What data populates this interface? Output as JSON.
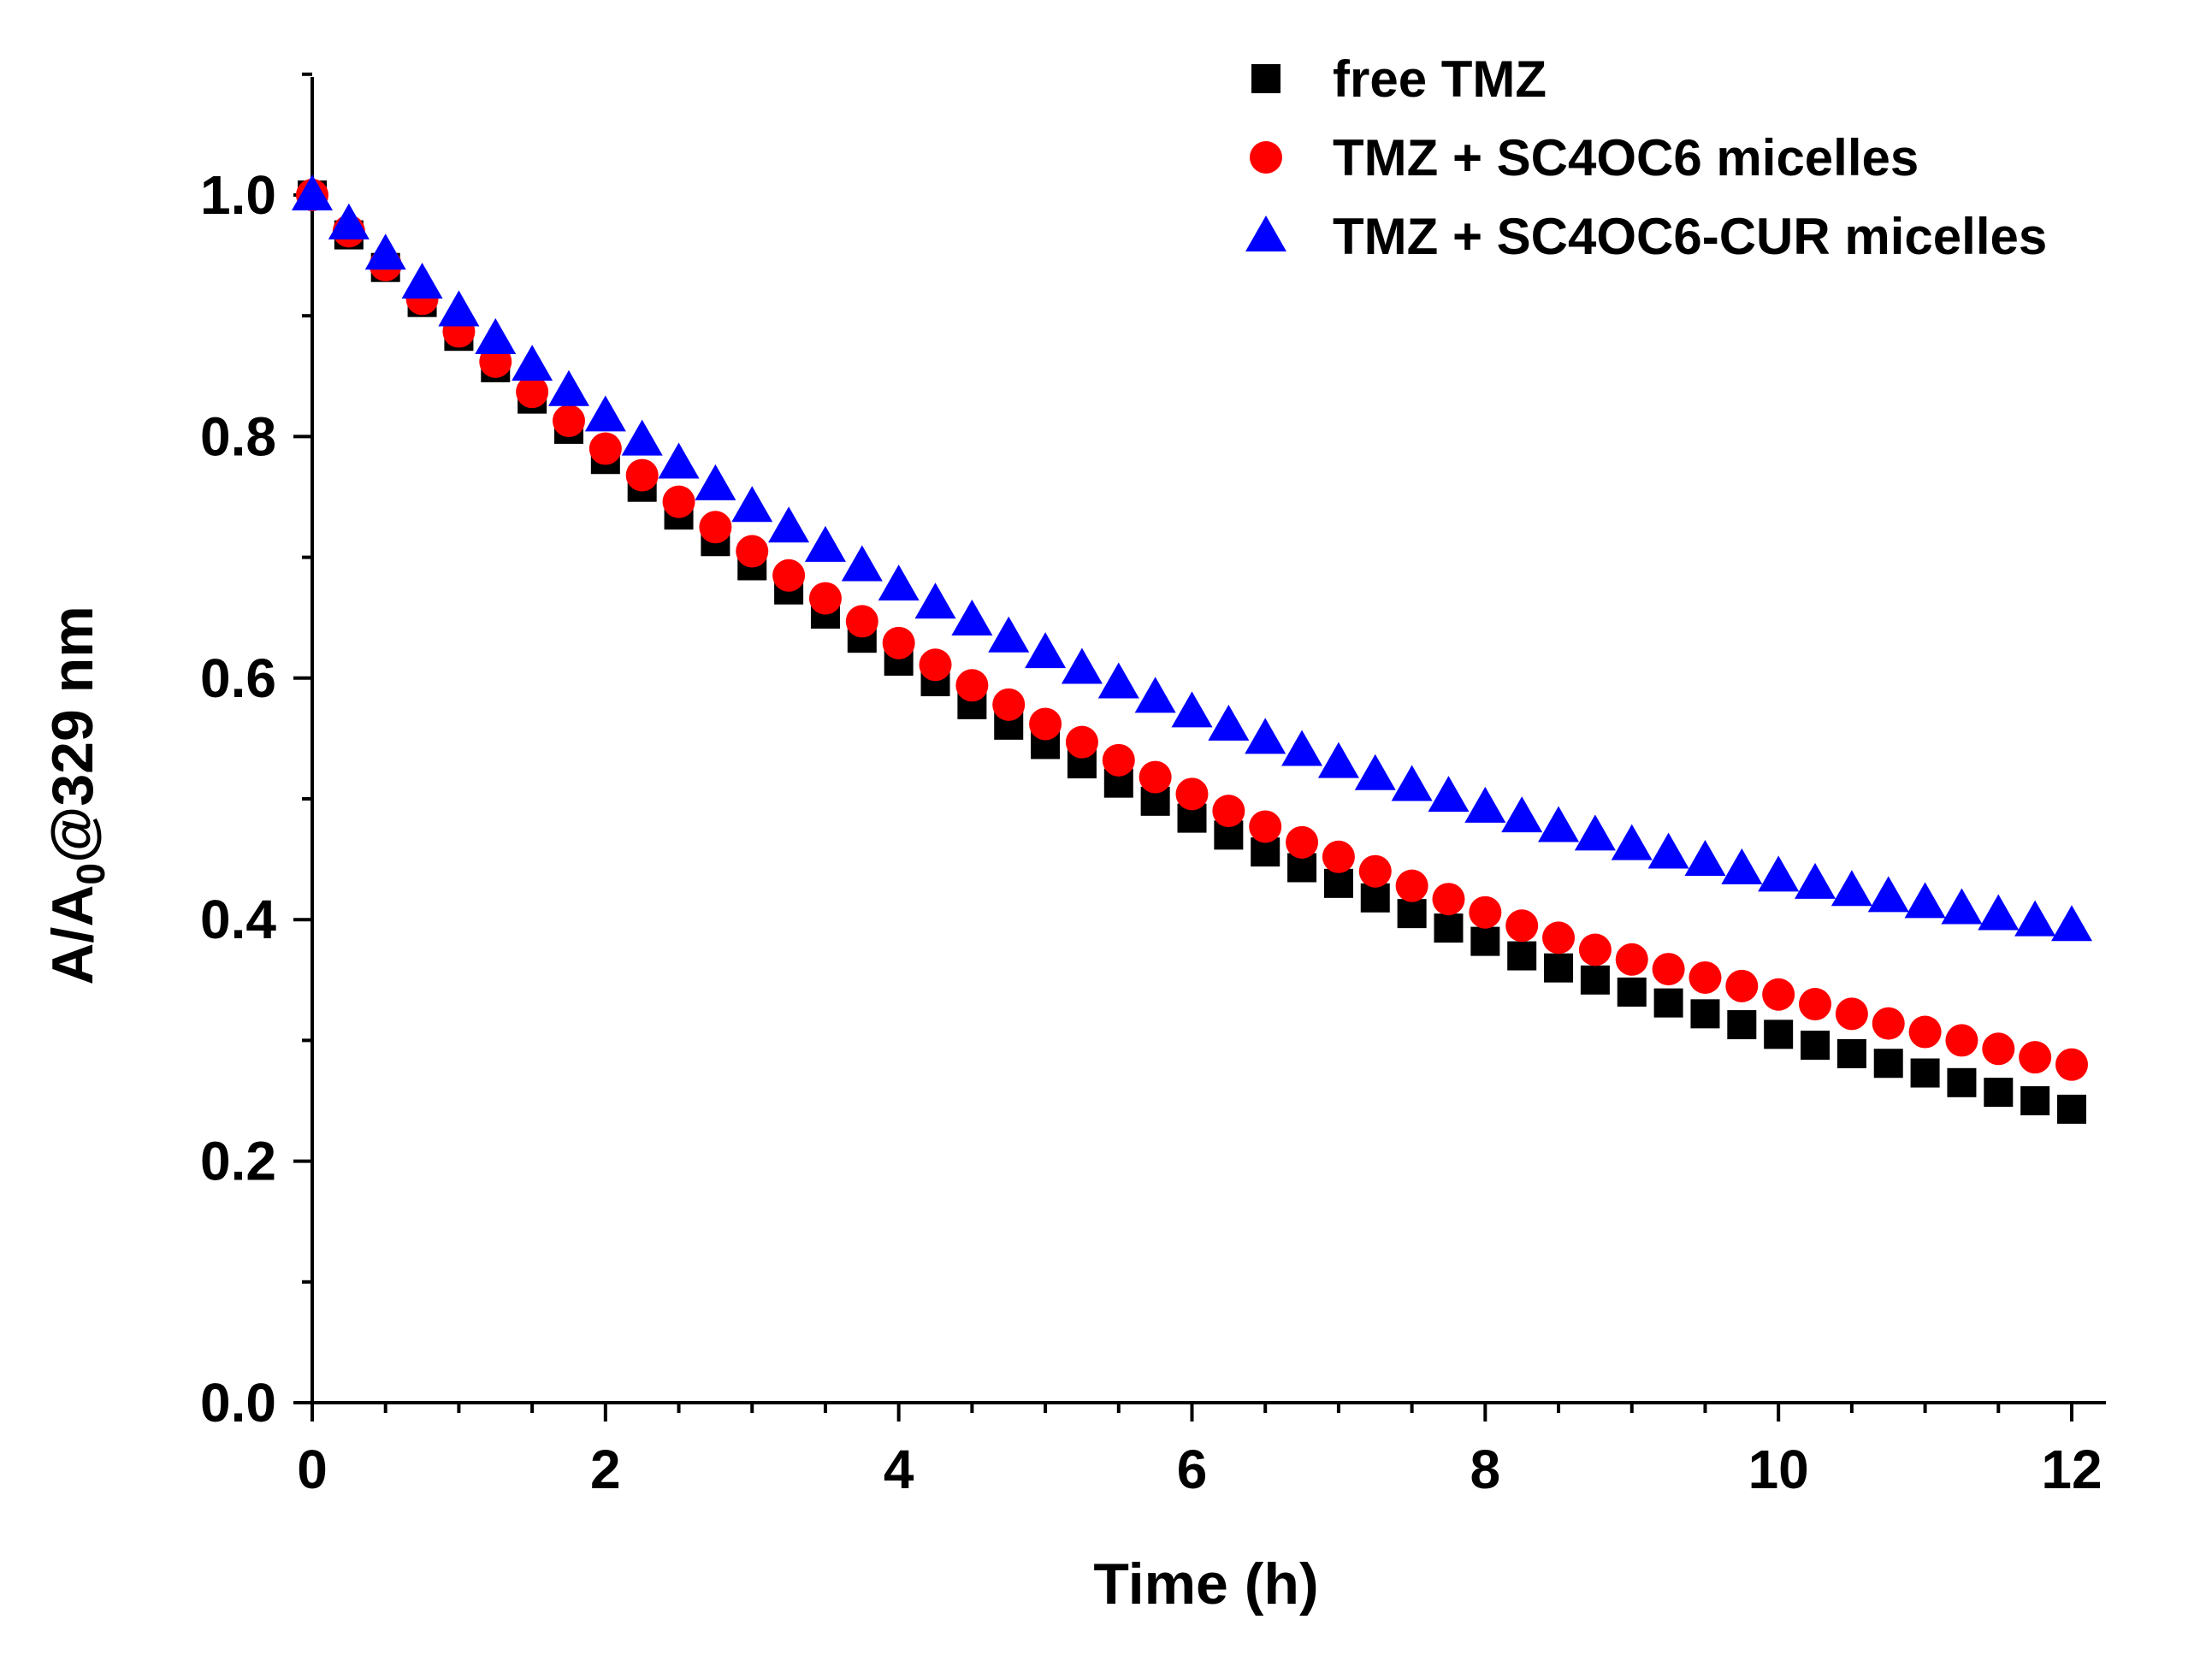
{
  "chart_data": {
    "type": "scatter",
    "title": "",
    "xlabel": "Time (h)",
    "ylabel": "A/A",
    "ylabel_subscript": "0",
    "ylabel_suffix": "@329 nm",
    "xlim": [
      0,
      12.2
    ],
    "ylim": [
      0,
      1.1
    ],
    "xticks": [
      0,
      2,
      4,
      6,
      8,
      10,
      12
    ],
    "xtick_labels": [
      "0",
      "2",
      "4",
      "6",
      "8",
      "10",
      "12"
    ],
    "yticks": [
      0.0,
      0.2,
      0.4,
      0.6,
      0.8,
      1.0
    ],
    "ytick_labels": [
      "0.0",
      "0.2",
      "0.4",
      "0.6",
      "0.8",
      "1.0"
    ],
    "grid": false,
    "legend_position": "top-right",
    "x": [
      0,
      0.25,
      0.5,
      0.75,
      1,
      1.25,
      1.5,
      1.75,
      2,
      2.25,
      2.5,
      2.75,
      3,
      3.25,
      3.5,
      3.75,
      4,
      4.25,
      4.5,
      4.75,
      5,
      5.25,
      5.5,
      5.75,
      6,
      6.25,
      6.5,
      6.75,
      7,
      7.25,
      7.5,
      7.75,
      8,
      8.25,
      8.5,
      8.75,
      9,
      9.25,
      9.5,
      9.75,
      10,
      10.25,
      10.5,
      10.75,
      11,
      11.25,
      11.5,
      11.75,
      12
    ],
    "series": [
      {
        "name": "free TMZ",
        "marker": "square",
        "color": "#000000",
        "values": [
          1.0,
          0.967,
          0.94,
          0.911,
          0.883,
          0.857,
          0.831,
          0.806,
          0.781,
          0.758,
          0.735,
          0.713,
          0.693,
          0.673,
          0.653,
          0.633,
          0.614,
          0.597,
          0.578,
          0.561,
          0.545,
          0.529,
          0.513,
          0.498,
          0.484,
          0.47,
          0.456,
          0.443,
          0.43,
          0.418,
          0.405,
          0.393,
          0.382,
          0.37,
          0.36,
          0.35,
          0.34,
          0.331,
          0.322,
          0.313,
          0.305,
          0.296,
          0.289,
          0.281,
          0.273,
          0.265,
          0.257,
          0.25,
          0.243
        ]
      },
      {
        "name": "TMZ + SC4OC6 micelles",
        "marker": "circle",
        "color": "#ff0000",
        "values": [
          1.0,
          0.97,
          0.942,
          0.914,
          0.887,
          0.862,
          0.837,
          0.813,
          0.79,
          0.768,
          0.746,
          0.725,
          0.705,
          0.685,
          0.666,
          0.647,
          0.629,
          0.611,
          0.594,
          0.578,
          0.562,
          0.547,
          0.532,
          0.518,
          0.504,
          0.49,
          0.477,
          0.464,
          0.452,
          0.44,
          0.428,
          0.417,
          0.406,
          0.395,
          0.385,
          0.375,
          0.367,
          0.359,
          0.352,
          0.345,
          0.338,
          0.33,
          0.322,
          0.314,
          0.307,
          0.3,
          0.293,
          0.286,
          0.28
        ]
      },
      {
        "name": "TMZ + SC4OC6-CUR micelles",
        "marker": "triangle",
        "color": "#0000ff",
        "values": [
          1.0,
          0.976,
          0.951,
          0.927,
          0.904,
          0.881,
          0.859,
          0.838,
          0.817,
          0.797,
          0.778,
          0.76,
          0.742,
          0.725,
          0.709,
          0.693,
          0.677,
          0.662,
          0.648,
          0.634,
          0.621,
          0.608,
          0.596,
          0.584,
          0.572,
          0.561,
          0.55,
          0.54,
          0.53,
          0.52,
          0.511,
          0.502,
          0.493,
          0.485,
          0.477,
          0.47,
          0.462,
          0.455,
          0.449,
          0.442,
          0.436,
          0.43,
          0.424,
          0.419,
          0.414,
          0.409,
          0.404,
          0.399,
          0.395
        ]
      }
    ]
  }
}
